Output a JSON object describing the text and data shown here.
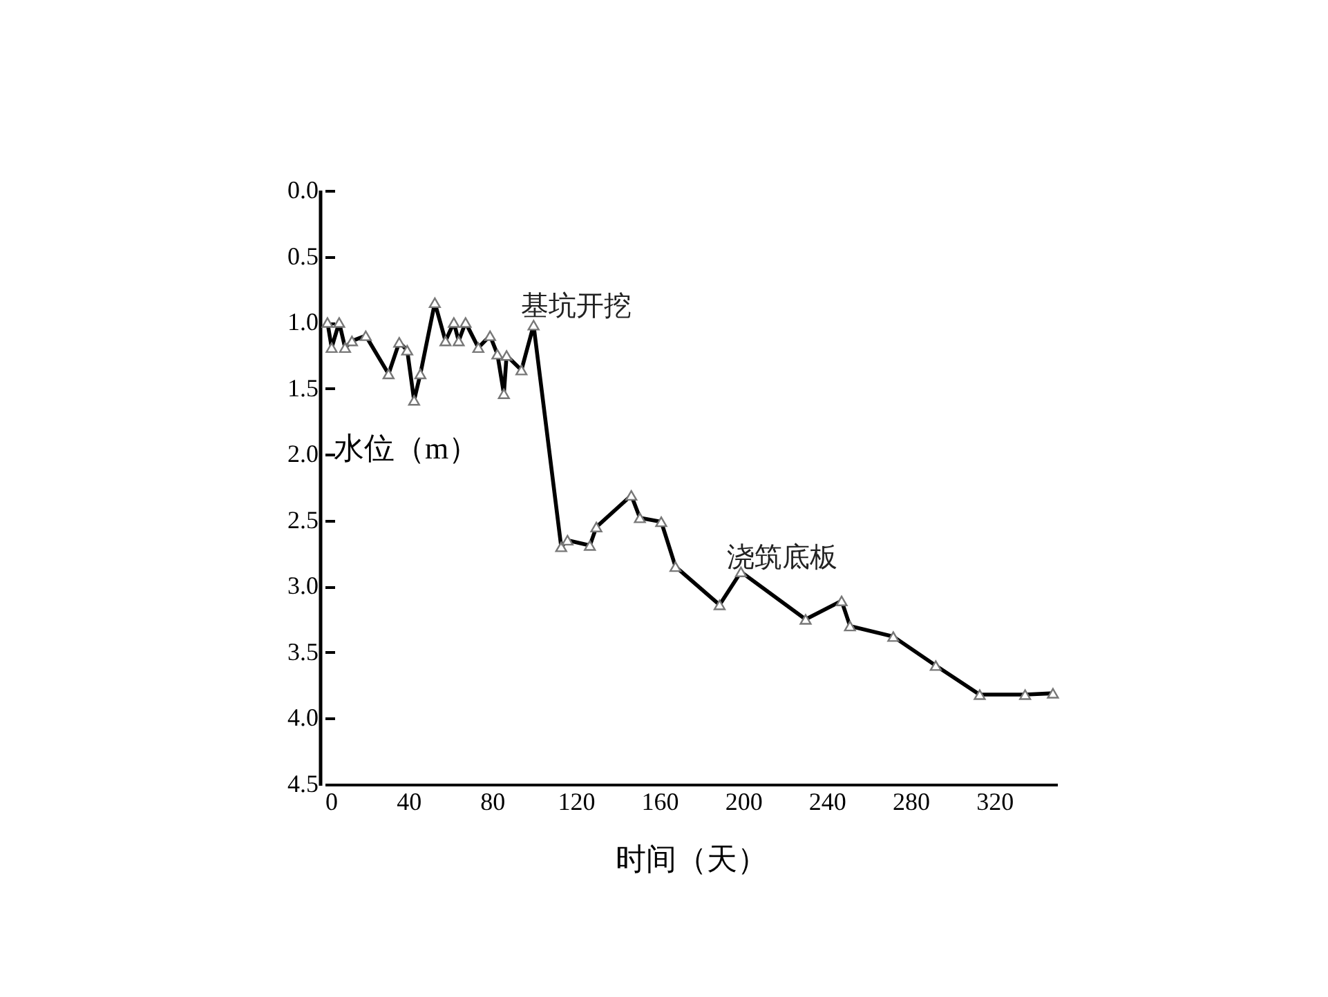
{
  "chart_data": {
    "type": "line",
    "xlabel": "时间（天）",
    "ylabel": "水位（m）",
    "x": [
      1.3,
      3.3,
      6.9,
      9.7,
      13,
      19.6,
      30.5,
      35.6,
      39.4,
      42.7,
      45.7,
      52.6,
      57.7,
      61.7,
      64,
      67.3,
      73.4,
      79,
      82.5,
      85.6,
      86.9,
      94,
      99.8,
      113,
      116,
      126.7,
      129.8,
      146.5,
      150.6,
      160.8,
      167.6,
      188.7,
      198.9,
      229.8,
      247,
      251,
      271.7,
      292,
      313,
      334.7,
      348
    ],
    "series": [
      {
        "color": "#000000",
        "values": [
          1.0,
          1.19,
          1.0,
          1.19,
          1.14,
          1.1,
          1.39,
          1.15,
          1.21,
          1.59,
          1.39,
          0.85,
          1.14,
          1.0,
          1.14,
          1.0,
          1.19,
          1.1,
          1.24,
          1.54,
          1.25,
          1.36,
          1.02,
          2.7,
          2.65,
          2.69,
          2.55,
          2.31,
          2.48,
          2.51,
          2.85,
          3.14,
          2.89,
          3.25,
          3.11,
          3.3,
          3.38,
          3.6,
          3.82,
          3.82,
          3.81
        ]
      }
    ],
    "xlim": [
      0,
      350
    ],
    "xticks": [
      0,
      40,
      80,
      120,
      160,
      200,
      240,
      280,
      320
    ],
    "ylim": [
      4.5,
      0
    ],
    "yticks": [
      {
        "value": 0,
        "label": "0.0"
      },
      0.5,
      {
        "value": 1,
        "label": "1.0"
      },
      1.5,
      {
        "value": 2,
        "label": "2.0"
      },
      2.5,
      {
        "value": 3,
        "label": "3.0"
      },
      3.5,
      {
        "value": 4,
        "label": "4.0"
      },
      4.5
    ],
    "annotations": [
      "基坑开挖",
      "浇筑底板"
    ],
    "marker": "triangle",
    "line_style": "solid",
    "grid": false
  }
}
